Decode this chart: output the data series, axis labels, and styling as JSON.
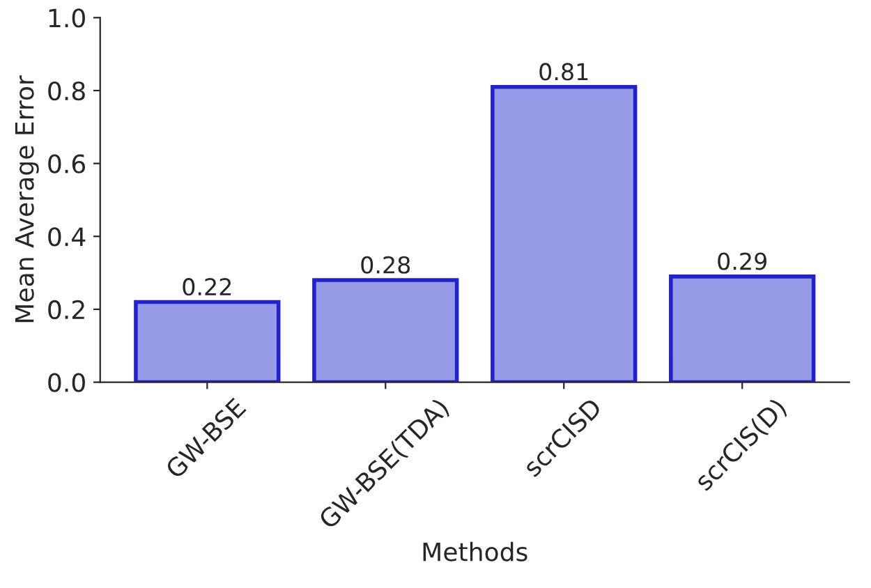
{
  "chart_data": {
    "type": "bar",
    "xlabel": "Methods",
    "ylabel": "Mean Average Error",
    "categories": [
      "GW-BSE",
      "GW-BSE(TDA)",
      "scrCISD",
      "scrCIS(D)"
    ],
    "values": [
      0.22,
      0.28,
      0.81,
      0.29
    ],
    "color": "#989ce8",
    "ylim": [
      0,
      1.0
    ],
    "yticks": [
      {
        "value": 0,
        "label": "0.0"
      },
      {
        "value": 0.2,
        "label": "0.2"
      },
      {
        "value": 0.4,
        "label": "0.4"
      },
      {
        "value": 0.6,
        "label": "0.6"
      },
      {
        "value": 0.8,
        "label": "0.8"
      },
      {
        "value": 1.0,
        "label": "1.0"
      }
    ],
    "data_labels": true,
    "grid": false,
    "legend": false
  }
}
